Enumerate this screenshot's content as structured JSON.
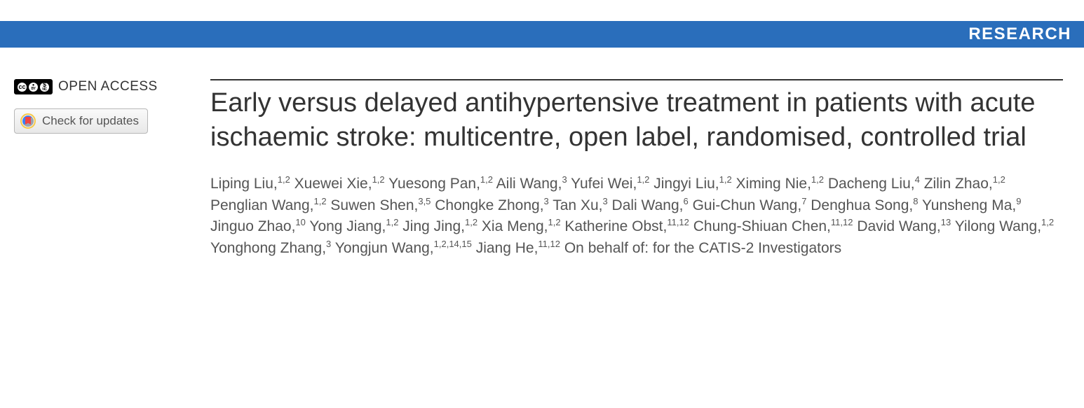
{
  "header": {
    "section_label": "RESEARCH"
  },
  "sidebar": {
    "open_access_label": "OPEN ACCESS",
    "updates_label": "Check for updates"
  },
  "article": {
    "title": "Early versus delayed antihypertensive treatment in patients with acute ischaemic stroke: multicentre, open label, randomised, controlled trial",
    "authors": [
      {
        "name": "Liping Liu",
        "affil": "1,2"
      },
      {
        "name": "Xuewei Xie",
        "affil": "1,2"
      },
      {
        "name": "Yuesong Pan",
        "affil": "1,2"
      },
      {
        "name": "Aili Wang",
        "affil": "3"
      },
      {
        "name": "Yufei Wei",
        "affil": "1,2"
      },
      {
        "name": "Jingyi Liu",
        "affil": "1,2"
      },
      {
        "name": "Ximing Nie",
        "affil": "1,2"
      },
      {
        "name": "Dacheng Liu",
        "affil": "4"
      },
      {
        "name": "Zilin Zhao",
        "affil": "1,2"
      },
      {
        "name": "Penglian Wang",
        "affil": "1,2"
      },
      {
        "name": "Suwen Shen",
        "affil": "3,5"
      },
      {
        "name": "Chongke Zhong",
        "affil": "3"
      },
      {
        "name": "Tan Xu",
        "affil": "3"
      },
      {
        "name": "Dali Wang",
        "affil": "6"
      },
      {
        "name": "Gui-Chun Wang",
        "affil": "7"
      },
      {
        "name": "Denghua Song",
        "affil": "8"
      },
      {
        "name": "Yunsheng Ma",
        "affil": "9"
      },
      {
        "name": "Jinguo Zhao",
        "affil": "10"
      },
      {
        "name": "Yong Jiang",
        "affil": "1,2"
      },
      {
        "name": "Jing Jing",
        "affil": "1,2"
      },
      {
        "name": "Xia Meng",
        "affil": "1,2"
      },
      {
        "name": "Katherine Obst",
        "affil": "11,12"
      },
      {
        "name": "Chung-Shiuan Chen",
        "affil": "11,12"
      },
      {
        "name": "David Wang",
        "affil": "13"
      },
      {
        "name": "Yilong Wang",
        "affil": "1,2"
      },
      {
        "name": "Yonghong Zhang",
        "affil": "3"
      },
      {
        "name": "Yongjun Wang",
        "affil": "1,2,14,15"
      },
      {
        "name": "Jiang He",
        "affil": "11,12"
      }
    ],
    "group_author": "On behalf of: for the CATIS-2 Investigators"
  },
  "colors": {
    "header_blue": "#2a6ebb",
    "text_dark": "#333333",
    "text_muted": "#555555",
    "button_border": "#b7b7b7"
  }
}
